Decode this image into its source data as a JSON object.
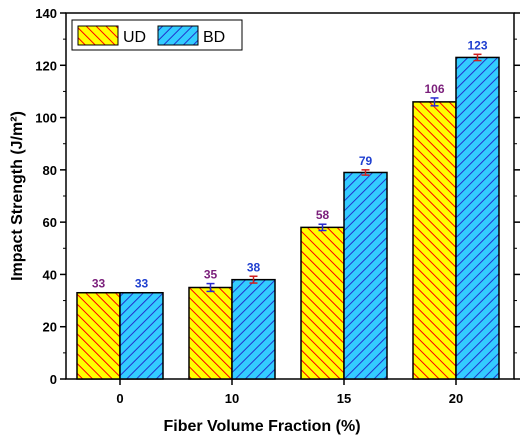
{
  "chart_data": {
    "type": "bar",
    "xlabel": "Fiber Volume Fraction (%)",
    "ylabel": "Impact Strength (J/m²)",
    "categories": [
      "0",
      "10",
      "15",
      "20"
    ],
    "ylim": [
      0,
      140
    ],
    "yticks": [
      "0",
      "20",
      "40",
      "60",
      "80",
      "100",
      "120",
      "140"
    ],
    "series": [
      {
        "name": "UD",
        "values": [
          33,
          35,
          58,
          106
        ],
        "errors": [
          0,
          1.5,
          1.2,
          1.5
        ],
        "labels": [
          "33",
          "35",
          "58",
          "106"
        ],
        "fill": "#ffff00",
        "hatch": "#ff0000",
        "label_color": "#7b1f7b",
        "error_color": "#2a2ad0"
      },
      {
        "name": "BD",
        "values": [
          33,
          38,
          79,
          123
        ],
        "errors": [
          0,
          1.3,
          1.0,
          1.2
        ],
        "labels": [
          "33",
          "38",
          "79",
          "123"
        ],
        "fill": "#33ccff",
        "hatch": "#2233cc",
        "label_color": "#1f3fd0",
        "error_color": "#d01f1f"
      }
    ],
    "legend": {
      "placement": "top-left"
    },
    "grid": false
  }
}
